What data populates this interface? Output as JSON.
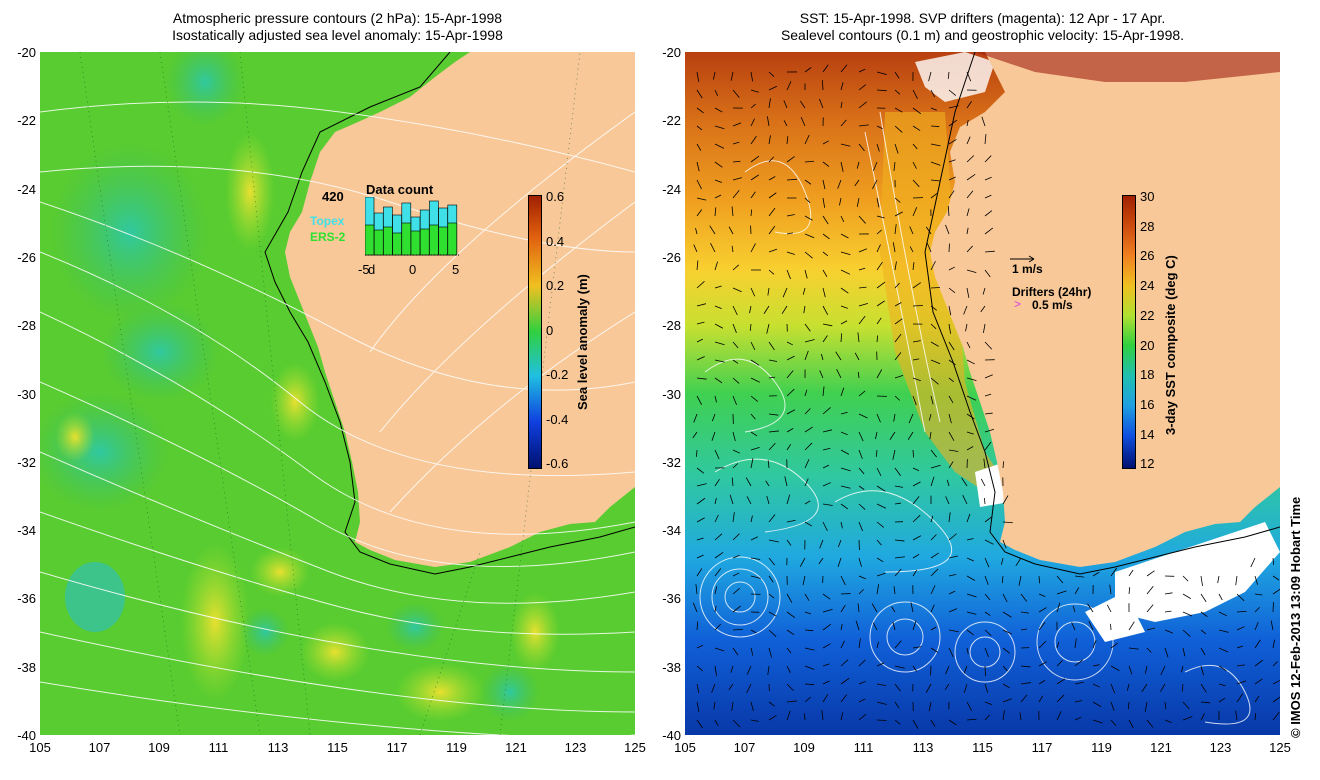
{
  "left_panel": {
    "title_line1": "Atmospheric pressure contours (2 hPa): 15-Apr-1998",
    "title_line2": "Isostatically adjusted sea level anomaly: 15-Apr-1998",
    "colorbar": {
      "label": "Sea level anomaly (m)",
      "ticks": [
        "0.6",
        "0.4",
        "0.2",
        "0",
        "-0.2",
        "-0.4",
        "-0.6"
      ]
    },
    "inset": {
      "title": "Data count",
      "ymax": "420",
      "series": [
        {
          "name": "Topex",
          "color": "#40e0e8"
        },
        {
          "name": "ERS-2",
          "color": "#30e030"
        }
      ],
      "xticks": [
        "-5",
        "d",
        "0",
        "5"
      ]
    }
  },
  "right_panel": {
    "title_line1": "SST: 15-Apr-1998. SVP drifters (magenta): 12 Apr - 17 Apr.",
    "title_line2": "Sealevel contours (0.1 m) and geostrophic velocity: 15-Apr-1998.",
    "colorbar": {
      "label": "3-day SST composite (deg C)",
      "ticks": [
        "30",
        "28",
        "26",
        "24",
        "22",
        "20",
        "18",
        "16",
        "14",
        "12"
      ]
    },
    "velocity_scale": "1 m/s",
    "drifters_label": "Drifters (24hr)",
    "drifters_scale": "0.5 m/s"
  },
  "axes": {
    "y_ticks": [
      "-20",
      "-22",
      "-24",
      "-26",
      "-28",
      "-30",
      "-32",
      "-34",
      "-36",
      "-38",
      "-40"
    ],
    "x_ticks": [
      "105",
      "107",
      "109",
      "111",
      "113",
      "115",
      "117",
      "119",
      "121",
      "123",
      "125"
    ]
  },
  "credit": "© IMOS 12-Feb-2013 13:09 Hobart Time",
  "colors": {
    "land": "#f8c898",
    "ocean_left": "#5ad030",
    "sst_north": "#c05a10",
    "sst_mid": "#f0c020",
    "sst_south": "#2080e0"
  }
}
